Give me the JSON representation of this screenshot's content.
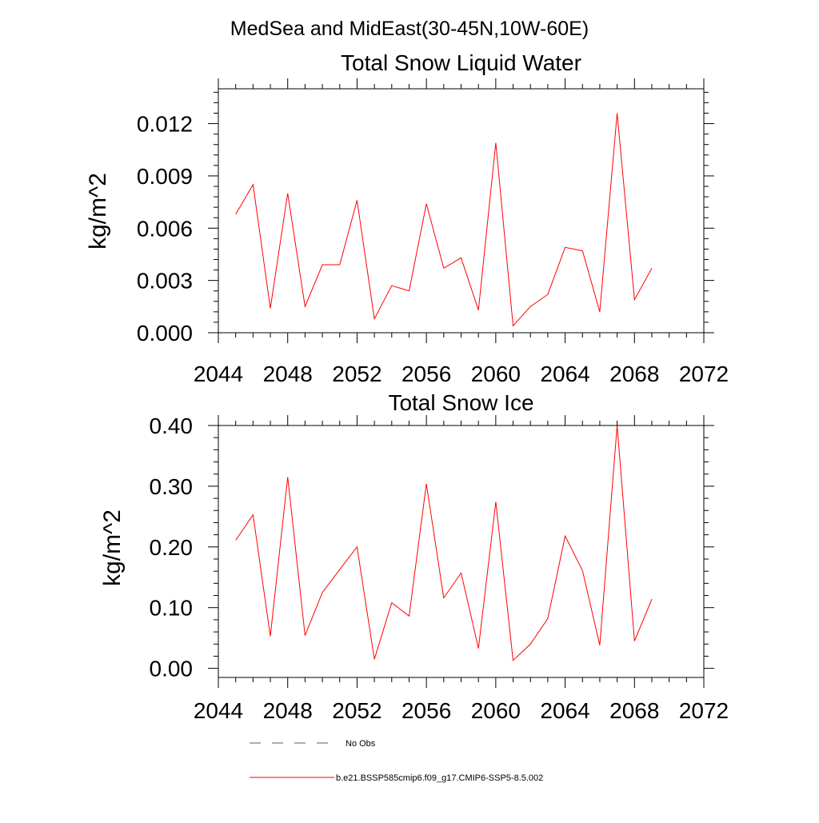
{
  "page_title": "MedSea and MidEast(30-45N,10W-60E)",
  "chart_data": [
    {
      "type": "line",
      "title": "Total Snow Liquid Water",
      "ylabel": "kg/m^2",
      "xlabel": "",
      "xlim": [
        2044,
        2072
      ],
      "ylim": [
        0.0,
        0.014
      ],
      "x_ticks": [
        2044,
        2048,
        2052,
        2056,
        2060,
        2064,
        2068,
        2072
      ],
      "x_tick_labels": [
        "2044",
        "2048",
        "2052",
        "2056",
        "2060",
        "2064",
        "2068",
        "2072"
      ],
      "y_ticks": [
        0.0,
        0.003,
        0.006,
        0.009,
        0.012
      ],
      "y_tick_labels": [
        "0.000",
        "0.003",
        "0.006",
        "0.009",
        "0.012"
      ],
      "grid": false,
      "series": [
        {
          "name": "b.e21.BSSP585cmip6.f09_g17.CMIP6-SSP5-8.5.002",
          "color": "#ff0000",
          "x": [
            2045,
            2046,
            2047,
            2048,
            2049,
            2050,
            2051,
            2052,
            2053,
            2054,
            2055,
            2056,
            2057,
            2058,
            2059,
            2060,
            2061,
            2062,
            2063,
            2064,
            2065,
            2066,
            2067,
            2068,
            2069
          ],
          "y": [
            0.0068,
            0.0085,
            0.0014,
            0.008,
            0.0015,
            0.0039,
            0.0039,
            0.0076,
            0.0008,
            0.0027,
            0.0024,
            0.0074,
            0.0037,
            0.0043,
            0.0013,
            0.0109,
            0.0004,
            0.0015,
            0.0022,
            0.0049,
            0.0047,
            0.0012,
            0.0126,
            0.0019,
            0.0037
          ]
        }
      ]
    },
    {
      "type": "line",
      "title": "Total Snow Ice",
      "ylabel": "kg/m^2",
      "xlabel": "",
      "xlim": [
        2044,
        2072
      ],
      "ylim": [
        -0.015,
        0.4
      ],
      "x_ticks": [
        2044,
        2048,
        2052,
        2056,
        2060,
        2064,
        2068,
        2072
      ],
      "x_tick_labels": [
        "2044",
        "2048",
        "2052",
        "2056",
        "2060",
        "2064",
        "2068",
        "2072"
      ],
      "y_ticks": [
        0.0,
        0.1,
        0.2,
        0.3,
        0.4
      ],
      "y_tick_labels": [
        "0.00",
        "0.10",
        "0.20",
        "0.30",
        "0.40"
      ],
      "grid": false,
      "series": [
        {
          "name": "b.e21.BSSP585cmip6.f09_g17.CMIP6-SSP5-8.5.002",
          "color": "#ff0000",
          "x": [
            2045,
            2046,
            2047,
            2048,
            2049,
            2050,
            2051,
            2052,
            2053,
            2054,
            2055,
            2056,
            2057,
            2058,
            2059,
            2060,
            2061,
            2062,
            2063,
            2064,
            2065,
            2066,
            2067,
            2068,
            2069
          ],
          "y": [
            0.211,
            0.253,
            0.053,
            0.315,
            0.054,
            0.125,
            0.163,
            0.2,
            0.015,
            0.108,
            0.086,
            0.304,
            0.116,
            0.157,
            0.033,
            0.274,
            0.013,
            0.04,
            0.082,
            0.218,
            0.161,
            0.038,
            0.4,
            0.045,
            0.114
          ]
        }
      ]
    }
  ],
  "legend": {
    "placement": "bottom",
    "entries": [
      {
        "label": "No Obs",
        "style": "dashed",
        "color": "#555577"
      },
      {
        "label": "b.e21.BSSP585cmip6.f09_g17.CMIP6-SSP5-8.5.002",
        "style": "solid",
        "color": "#ff0000"
      }
    ]
  }
}
